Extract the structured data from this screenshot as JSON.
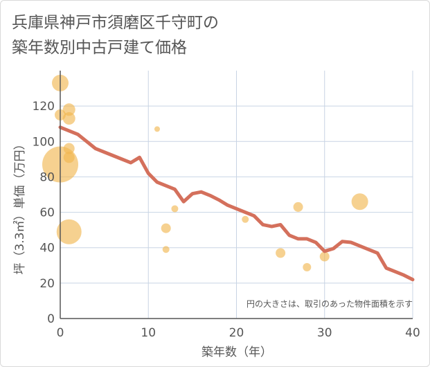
{
  "title_lines": [
    "兵庫県神戸市須磨区千守町の",
    "築年数別中古戸建て価格"
  ],
  "chart_data": {
    "type": "scatter",
    "xlabel": "築年数（年）",
    "ylabel": "坪（3.3㎡）単価（万円）",
    "xlim": [
      0,
      40
    ],
    "ylim": [
      0,
      140
    ],
    "xticks": [
      0,
      10,
      20,
      30,
      40
    ],
    "yticks": [
      0,
      20,
      40,
      60,
      80,
      100,
      120
    ],
    "grid": true,
    "note": "円の大きさは、取引のあった物件面積を示す",
    "colors": {
      "bubble": "#f0b44c",
      "line": "#d4705c",
      "grid": "#c8d4e4",
      "axis": "#555555"
    },
    "points": [
      {
        "x": 0,
        "y": 133,
        "size": 12
      },
      {
        "x": 0,
        "y": 87,
        "size": 26
      },
      {
        "x": 0,
        "y": 115,
        "size": 8
      },
      {
        "x": 1,
        "y": 118,
        "size": 9
      },
      {
        "x": 1,
        "y": 113,
        "size": 9
      },
      {
        "x": 1,
        "y": 96,
        "size": 8
      },
      {
        "x": 1,
        "y": 91,
        "size": 8
      },
      {
        "x": 1,
        "y": 49,
        "size": 18
      },
      {
        "x": 11,
        "y": 107,
        "size": 4
      },
      {
        "x": 12,
        "y": 51,
        "size": 7
      },
      {
        "x": 12,
        "y": 39,
        "size": 5
      },
      {
        "x": 13,
        "y": 62,
        "size": 5
      },
      {
        "x": 21,
        "y": 56,
        "size": 5
      },
      {
        "x": 25,
        "y": 37,
        "size": 7
      },
      {
        "x": 27,
        "y": 63,
        "size": 7
      },
      {
        "x": 28,
        "y": 29,
        "size": 6
      },
      {
        "x": 30,
        "y": 35,
        "size": 7
      },
      {
        "x": 34,
        "y": 66,
        "size": 12
      }
    ],
    "trend": {
      "x": [
        0,
        2,
        4,
        6,
        8,
        9,
        10,
        11,
        12,
        13,
        14,
        15,
        16,
        17,
        18,
        19,
        20,
        21,
        22,
        23,
        24,
        25,
        26,
        27,
        28,
        29,
        30,
        31,
        32,
        33,
        34,
        35,
        36,
        37,
        38,
        39,
        40
      ],
      "y": [
        108,
        104,
        96,
        92,
        88,
        91,
        82,
        77,
        75,
        73,
        66,
        70.5,
        71.5,
        69.5,
        67,
        64,
        62,
        60,
        58,
        53,
        52,
        53,
        47,
        45,
        45,
        43,
        38,
        39.5,
        43.5,
        43,
        41,
        39,
        37,
        28.5,
        26.5,
        24.5,
        22
      ]
    }
  }
}
